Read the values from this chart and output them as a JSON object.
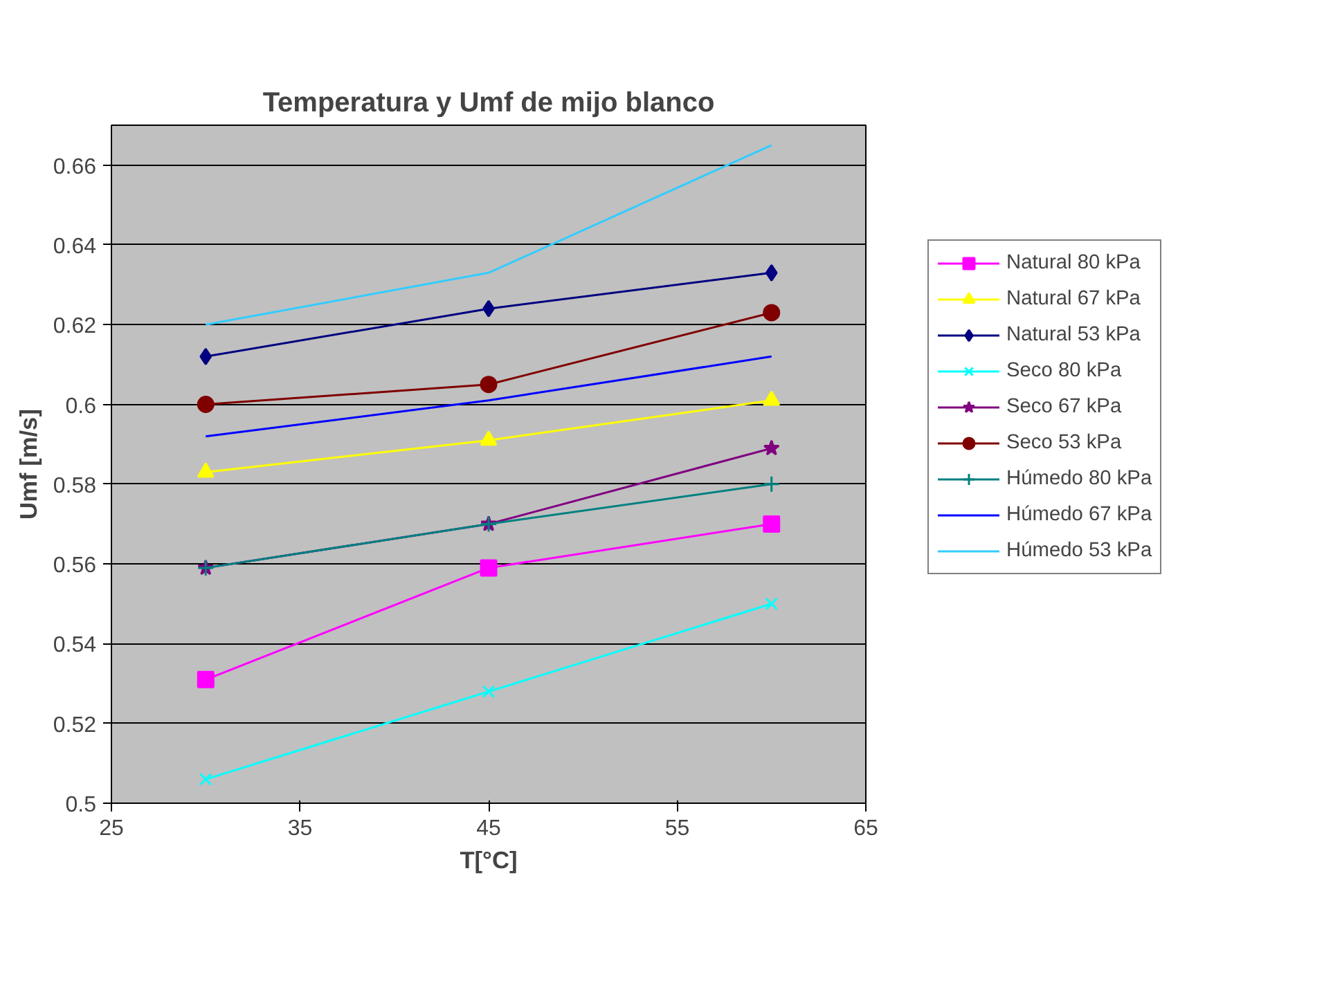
{
  "chart_data": {
    "type": "line",
    "title": "Temperatura y Umf de mijo blanco",
    "xlabel": "T[°C]",
    "ylabel": "Umf [m/s]",
    "x": [
      30,
      45,
      60
    ],
    "xlim": [
      25,
      65
    ],
    "xticks": [
      25,
      35,
      45,
      55,
      65
    ],
    "ylim": [
      0.5,
      0.67
    ],
    "yticks": [
      0.5,
      0.52,
      0.54,
      0.56,
      0.58,
      0.6,
      0.62,
      0.64,
      0.66
    ],
    "grid": "y",
    "legend": "right",
    "series": [
      {
        "name": "Natural 80 kPa",
        "color": "#ff00ff",
        "marker": "square",
        "values": [
          0.531,
          0.559,
          0.57
        ]
      },
      {
        "name": "Natural 67 kPa",
        "color": "#ffff00",
        "marker": "triangle",
        "values": [
          0.583,
          0.591,
          0.601
        ]
      },
      {
        "name": "Natural 53 kPa",
        "color": "#000080",
        "marker": "diamond",
        "values": [
          0.612,
          0.624,
          0.633
        ]
      },
      {
        "name": "Seco 80 kPa",
        "color": "#00ffff",
        "marker": "x",
        "values": [
          0.506,
          0.528,
          0.55
        ]
      },
      {
        "name": "Seco 67 kPa",
        "color": "#800080",
        "marker": "star",
        "values": [
          0.559,
          0.57,
          0.589
        ]
      },
      {
        "name": "Seco 53 kPa",
        "color": "#800000",
        "marker": "circle",
        "values": [
          0.6,
          0.605,
          0.623
        ]
      },
      {
        "name": "Húmedo 80 kPa",
        "color": "#008080",
        "marker": "cross",
        "values": [
          0.559,
          0.57,
          0.58
        ]
      },
      {
        "name": "Húmedo 67 kPa",
        "color": "#0000ff",
        "marker": "none",
        "values": [
          0.592,
          0.601,
          0.612
        ]
      },
      {
        "name": "Húmedo 53 kPa",
        "color": "#33ccff",
        "marker": "none",
        "values": [
          0.62,
          0.633,
          0.665
        ]
      }
    ]
  }
}
